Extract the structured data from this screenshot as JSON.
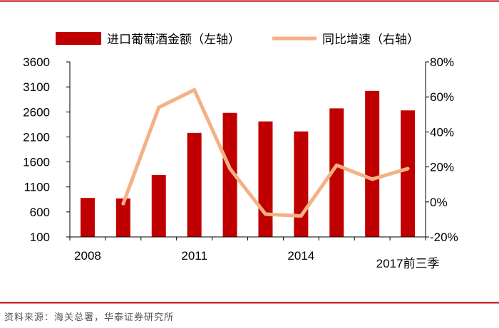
{
  "chart_data": {
    "type": "bar",
    "categories": [
      "2008",
      "2009",
      "2010",
      "2011",
      "2012",
      "2013",
      "2014",
      "2015",
      "2016",
      "2017前三季"
    ],
    "x_tick_labels": [
      "2008",
      "2011",
      "2014",
      "2017前三季"
    ],
    "series": [
      {
        "name": "进口葡萄酒金额（左轴）",
        "type": "bar",
        "axis": "left",
        "values": [
          880,
          870,
          1340,
          2180,
          2580,
          2410,
          2210,
          2670,
          3020,
          2630
        ]
      },
      {
        "name": "同比增速（右轴）",
        "type": "line",
        "axis": "right",
        "values": [
          null,
          -0.01,
          0.54,
          0.64,
          0.19,
          -0.07,
          -0.08,
          0.21,
          0.13,
          0.19
        ]
      }
    ],
    "y_left": {
      "lim": [
        100,
        3600
      ],
      "ticks": [
        "100",
        "600",
        "1100",
        "1600",
        "2100",
        "2600",
        "3100",
        "3600"
      ]
    },
    "y_right": {
      "lim": [
        -0.2,
        0.8
      ],
      "ticks": [
        "-20%",
        "0%",
        "20%",
        "40%",
        "60%",
        "80%"
      ]
    },
    "colors": {
      "bar": "#c00000",
      "line": "#f4b183",
      "frame": "#c00000"
    },
    "legend_position": "top",
    "grid": false
  },
  "source_text": "资料来源：海关总署，华泰证券研究所"
}
